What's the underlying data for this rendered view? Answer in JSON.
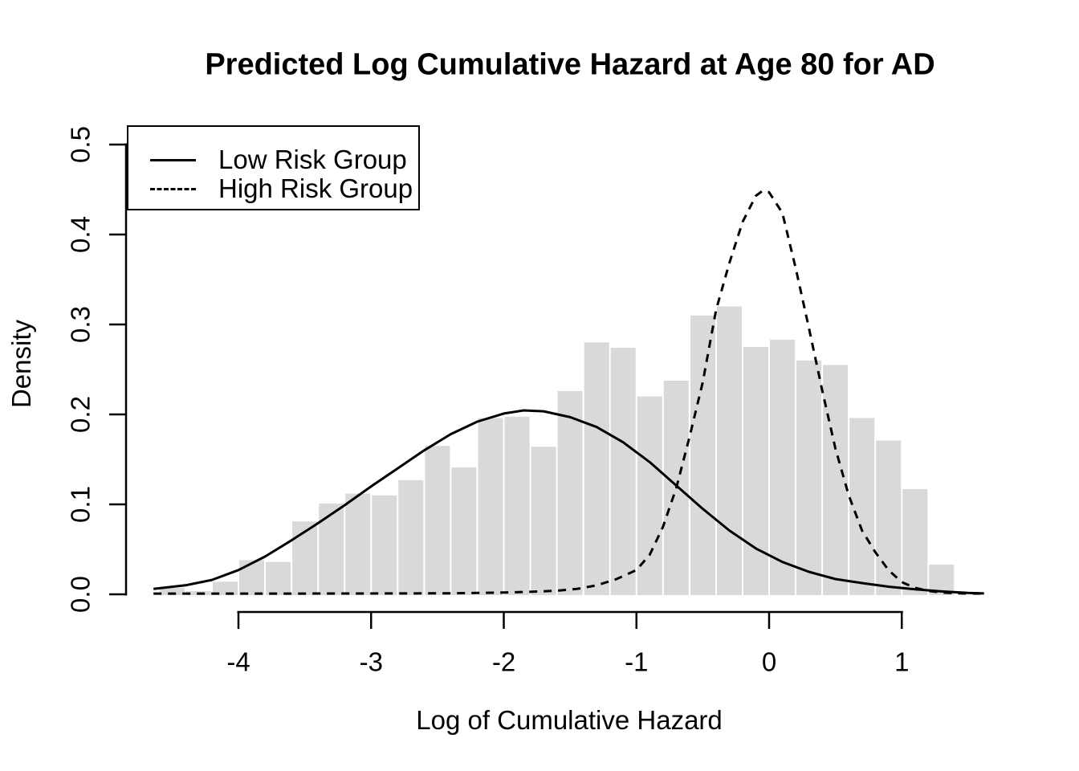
{
  "chart_data": {
    "type": "bar",
    "subtype": "histogram-with-density-curves",
    "title": "Predicted Log Cumulative Hazard at Age 80 for AD",
    "xlabel": "Log of Cumulative Hazard",
    "ylabel": "Density",
    "x_ticks": [
      -4,
      -3,
      -2,
      -1,
      0,
      1
    ],
    "x_tick_labels": [
      "-4",
      "-3",
      "-2",
      "-1",
      "0",
      "1"
    ],
    "y_ticks": [
      0.0,
      0.1,
      0.2,
      0.3,
      0.4,
      0.5
    ],
    "y_tick_labels": [
      "0.0",
      "0.1",
      "0.2",
      "0.3",
      "0.4",
      "0.5"
    ],
    "xlim": [
      -4.65,
      1.65
    ],
    "ylim": [
      0,
      0.5
    ],
    "grid": false,
    "histogram": {
      "bin_start": -4.6,
      "bin_width": 0.2,
      "densities": [
        0.007,
        0.0035,
        0.014,
        0.038,
        0.036,
        0.081,
        0.101,
        0.112,
        0.11,
        0.127,
        0.165,
        0.141,
        0.196,
        0.1975,
        0.164,
        0.226,
        0.28,
        0.274,
        0.22,
        0.2375,
        0.31,
        0.32,
        0.275,
        0.283,
        0.26,
        0.255,
        0.196,
        0.171,
        0.117,
        0.033
      ]
    },
    "series": [
      {
        "name": "Low Risk Group",
        "style": "solid",
        "points": [
          [
            -4.64,
            0.006
          ],
          [
            -4.4,
            0.01
          ],
          [
            -4.2,
            0.016
          ],
          [
            -4.0,
            0.027
          ],
          [
            -3.8,
            0.042
          ],
          [
            -3.6,
            0.06
          ],
          [
            -3.4,
            0.079
          ],
          [
            -3.2,
            0.099
          ],
          [
            -3.0,
            0.12
          ],
          [
            -2.8,
            0.14
          ],
          [
            -2.6,
            0.16
          ],
          [
            -2.4,
            0.178
          ],
          [
            -2.2,
            0.192
          ],
          [
            -2.0,
            0.201
          ],
          [
            -1.85,
            0.2045
          ],
          [
            -1.7,
            0.2035
          ],
          [
            -1.5,
            0.197
          ],
          [
            -1.3,
            0.186
          ],
          [
            -1.1,
            0.169
          ],
          [
            -0.9,
            0.147
          ],
          [
            -0.7,
            0.121
          ],
          [
            -0.5,
            0.095
          ],
          [
            -0.3,
            0.071
          ],
          [
            -0.1,
            0.051
          ],
          [
            0.1,
            0.036
          ],
          [
            0.3,
            0.025
          ],
          [
            0.5,
            0.017
          ],
          [
            0.7,
            0.0125
          ],
          [
            0.9,
            0.0085
          ],
          [
            1.1,
            0.0055
          ],
          [
            1.3,
            0.0032
          ],
          [
            1.5,
            0.0015
          ],
          [
            1.62,
            0.001
          ]
        ]
      },
      {
        "name": "High Risk Group",
        "style": "dashed",
        "points": [
          [
            -4.64,
            0.0008
          ],
          [
            -4.0,
            0.0008
          ],
          [
            -3.6,
            0.0008
          ],
          [
            -3.2,
            0.0009
          ],
          [
            -2.8,
            0.001
          ],
          [
            -2.4,
            0.0012
          ],
          [
            -2.2,
            0.0015
          ],
          [
            -2.0,
            0.002
          ],
          [
            -1.8,
            0.0028
          ],
          [
            -1.6,
            0.004
          ],
          [
            -1.45,
            0.006
          ],
          [
            -1.3,
            0.01
          ],
          [
            -1.15,
            0.017
          ],
          [
            -1.0,
            0.027
          ],
          [
            -0.9,
            0.044
          ],
          [
            -0.8,
            0.075
          ],
          [
            -0.7,
            0.118
          ],
          [
            -0.6,
            0.175
          ],
          [
            -0.5,
            0.236
          ],
          [
            -0.4,
            0.316
          ],
          [
            -0.3,
            0.368
          ],
          [
            -0.2,
            0.414
          ],
          [
            -0.1,
            0.443
          ],
          [
            -0.05,
            0.4485
          ],
          [
            0.0,
            0.447
          ],
          [
            0.1,
            0.424
          ],
          [
            0.2,
            0.363
          ],
          [
            0.3,
            0.296
          ],
          [
            0.4,
            0.227
          ],
          [
            0.5,
            0.162
          ],
          [
            0.6,
            0.11
          ],
          [
            0.7,
            0.071
          ],
          [
            0.8,
            0.047
          ],
          [
            0.9,
            0.027
          ],
          [
            1.0,
            0.0135
          ],
          [
            1.1,
            0.0072
          ],
          [
            1.2,
            0.0038
          ],
          [
            1.3,
            0.002
          ],
          [
            1.45,
            0.001
          ],
          [
            1.62,
            0.0008
          ]
        ]
      }
    ],
    "legend": {
      "position": "top-left",
      "items": [
        {
          "label": "Low Risk Group",
          "line": "solid"
        },
        {
          "label": "High Risk Group",
          "line": "dashed"
        }
      ]
    },
    "colors": {
      "bar_fill": "#d9d9d9",
      "bar_gap": "#ffffff",
      "line": "#000000",
      "text": "#000000",
      "background": "#ffffff"
    }
  }
}
